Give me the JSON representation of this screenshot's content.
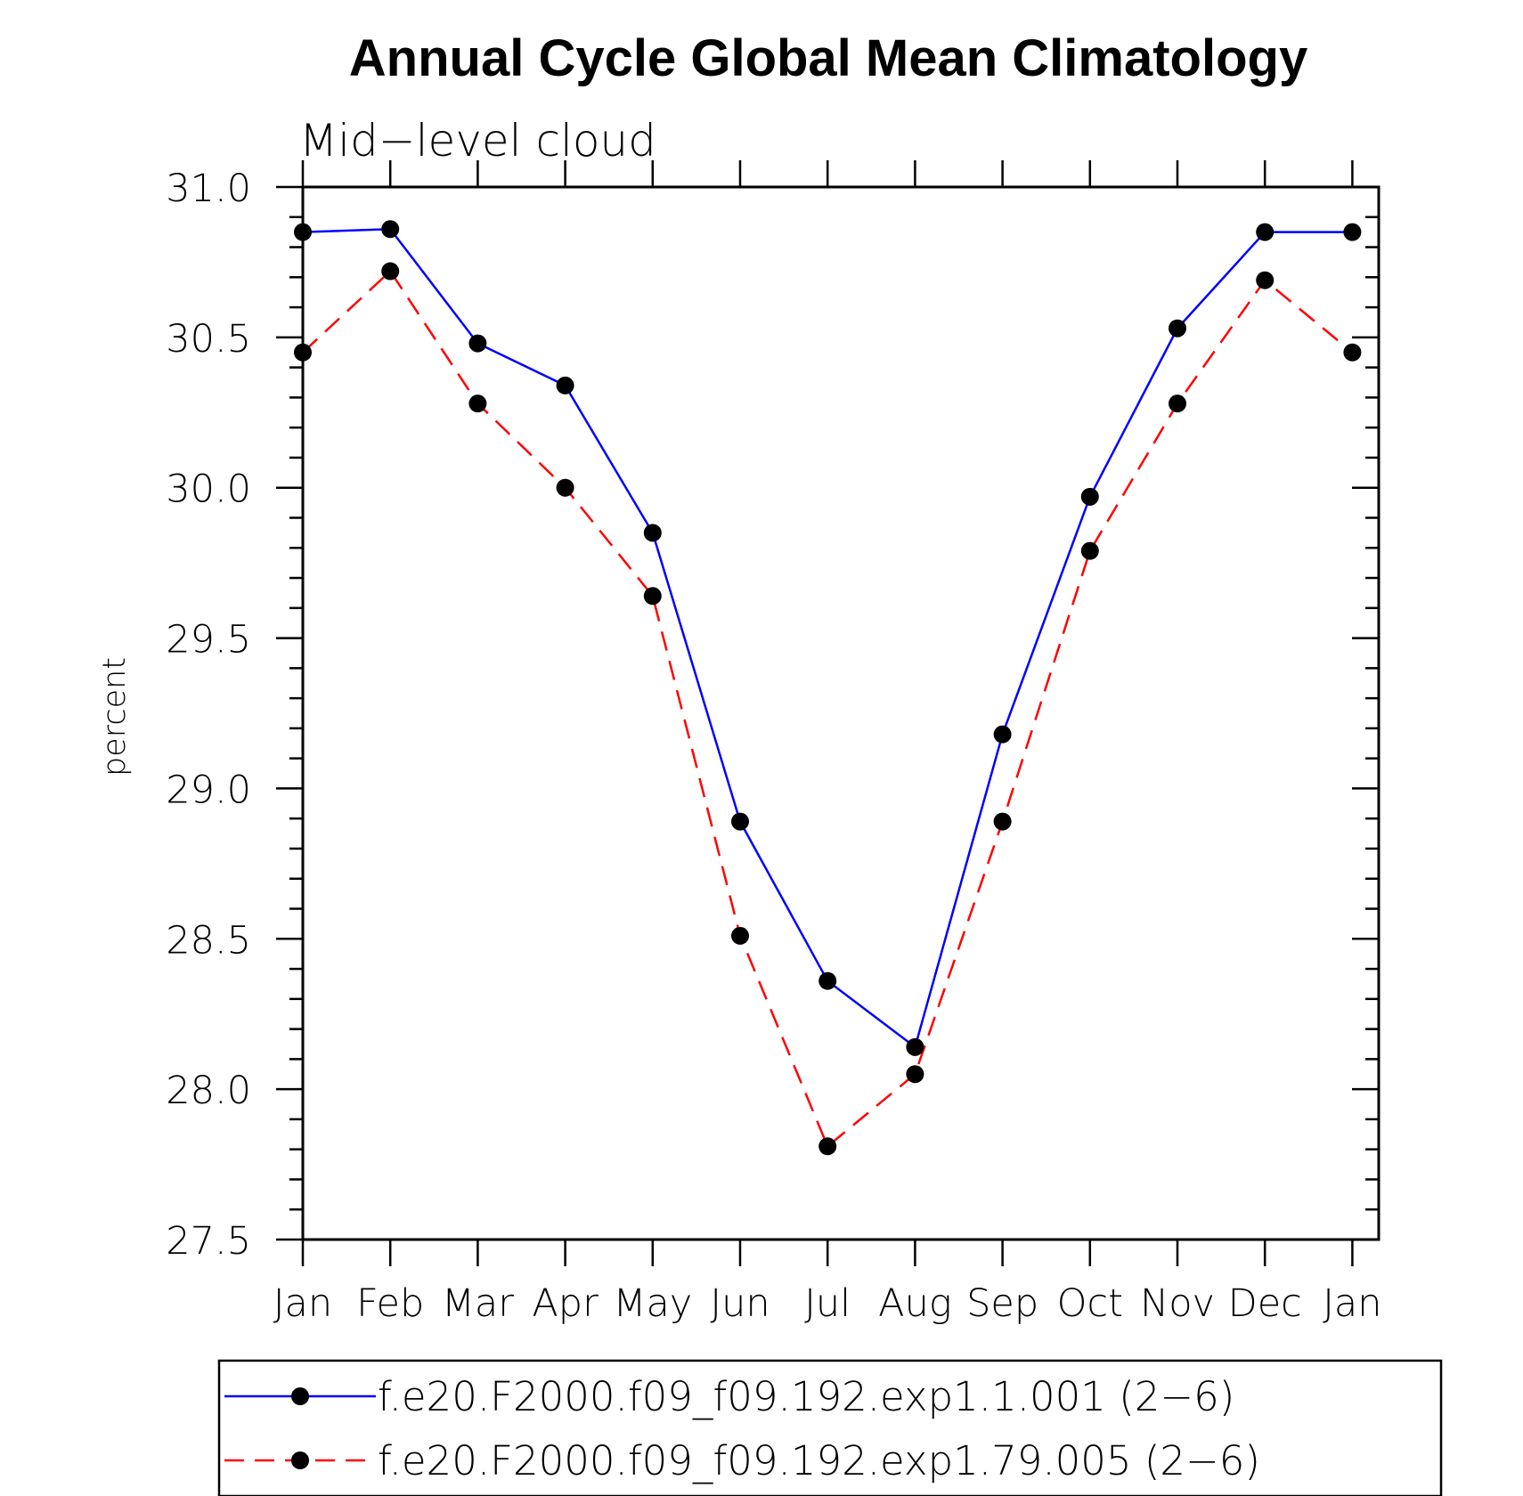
{
  "chart_data": {
    "type": "line",
    "title": "Annual Cycle Global Mean Climatology",
    "subtitle": "Mid−level cloud",
    "xlabel": "",
    "ylabel": "percent",
    "categories": [
      "Jan",
      "Feb",
      "Mar",
      "Apr",
      "May",
      "Jun",
      "Jul",
      "Aug",
      "Sep",
      "Oct",
      "Nov",
      "Dec",
      "Jan"
    ],
    "ylim": [
      27.5,
      31.0
    ],
    "yticks": [
      "27.5",
      "28.0",
      "28.5",
      "29.0",
      "29.5",
      "30.0",
      "30.5",
      "31.0"
    ],
    "grid": false,
    "legend_position": "bottom",
    "series": [
      {
        "name": "f.e20.F2000.f09_f09.192.exp1.1.001 (2−6)",
        "color": "#0000ff",
        "dash": "solid",
        "marker": "filled-circle",
        "values": [
          30.85,
          30.86,
          30.48,
          30.34,
          29.85,
          28.89,
          28.36,
          28.14,
          29.18,
          29.97,
          30.53,
          30.85,
          30.85
        ]
      },
      {
        "name": "f.e20.F2000.f09_f09.192.exp1.79.005 (2−6)",
        "color": "#ff0000",
        "dash": "dashed",
        "marker": "filled-circle",
        "values": [
          30.45,
          30.72,
          30.28,
          30.0,
          29.64,
          28.51,
          27.81,
          28.05,
          28.89,
          29.79,
          30.28,
          30.69,
          30.45
        ]
      }
    ]
  }
}
